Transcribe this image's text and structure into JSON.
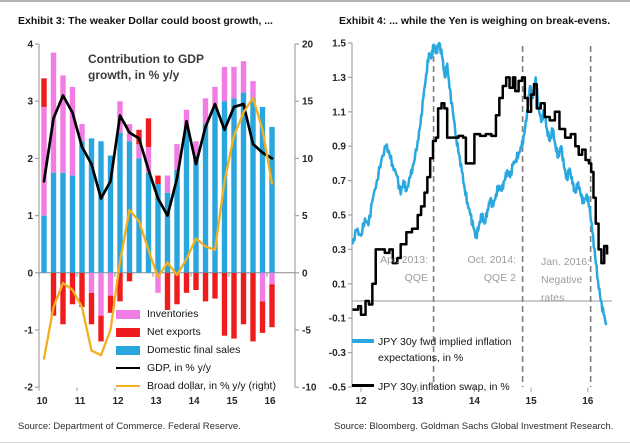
{
  "page": {
    "top_border_color": "#b3b3b3",
    "background": "#ffffff"
  },
  "chart_data": [
    {
      "type": "bar",
      "title": "Exhibit 3: The weaker Dollar could boost growth, ...",
      "note": {
        "line1": "Contribution to GDP",
        "line2": "growth, in % y/y"
      },
      "source": "Source: Department of Commerce. Federal Reserve.",
      "xlabel": "",
      "ylabel": "",
      "x_axis": {
        "year_ticks": [
          10,
          11,
          12,
          13,
          14,
          15,
          16
        ],
        "quarter_start": 10,
        "quarter_step": 0.25
      },
      "left_axis": {
        "min": -2,
        "max": 4,
        "ticks": [
          4,
          3,
          2,
          1,
          0,
          -1,
          -2
        ]
      },
      "right_axis": {
        "min": -10,
        "max": 20,
        "ticks": [
          20,
          15,
          10,
          5,
          0,
          -5,
          -10
        ]
      },
      "axis_color": "#a3a3a3",
      "zero_line_color": "#8c8c8c",
      "series": [
        {
          "name": "Inventories",
          "kind": "bar",
          "color": "#F07CE4",
          "values": [
            1.9,
            2.1,
            1.7,
            1.55,
            0.3,
            -0.35,
            -0.75,
            -0.4,
            0.55,
            0.3,
            0.25,
            0.45,
            -0.35,
            0.3,
            0.45,
            0.35,
            0.25,
            0.45,
            0.35,
            0.6,
            0.55,
            0.55,
            0.3,
            -0.5,
            -0.2
          ]
        },
        {
          "name": "Net exports",
          "kind": "bar",
          "color": "#EE1C1C",
          "values": [
            0.5,
            -0.75,
            -0.9,
            -0.55,
            -0.6,
            -0.55,
            -0.45,
            -0.3,
            -0.5,
            -0.15,
            0.25,
            0.5,
            0.15,
            -0.65,
            -0.55,
            -0.35,
            -0.3,
            -0.5,
            -0.45,
            -1.1,
            -1.15,
            -0.9,
            -1.2,
            -0.55,
            -0.75
          ]
        },
        {
          "name": "Domestic final sales",
          "kind": "bar",
          "color": "#2AA6DF",
          "values": [
            1.0,
            1.75,
            1.75,
            1.7,
            2.3,
            2.35,
            2.3,
            2.05,
            2.45,
            2.3,
            2.0,
            1.75,
            1.55,
            1.4,
            1.8,
            2.5,
            2.05,
            2.6,
            2.9,
            3.0,
            3.05,
            3.15,
            3.05,
            2.9,
            2.55
          ]
        },
        {
          "name": "GDP, in % y/y",
          "kind": "line",
          "axis": "left",
          "color": "#000000",
          "values": [
            1.6,
            2.7,
            3.1,
            2.8,
            2.2,
            1.9,
            1.3,
            1.6,
            2.75,
            2.45,
            2.35,
            1.8,
            1.3,
            1.0,
            1.65,
            2.65,
            1.9,
            2.55,
            2.95,
            2.5,
            2.9,
            2.95,
            2.25,
            2.1,
            2.0
          ]
        },
        {
          "name": "Broad dollar, in % y/y (right)",
          "kind": "line",
          "axis": "right",
          "color": "#F2B01E",
          "values": [
            -7.5,
            -3.0,
            -0.9,
            -1.5,
            -3.0,
            -6.8,
            -7.2,
            -5.0,
            1.0,
            5.5,
            4.5,
            2.0,
            -0.4,
            0.9,
            -0.2,
            1.2,
            3.0,
            2.3,
            2.0,
            8.0,
            12.0,
            14.0,
            15.3,
            12.5,
            7.8
          ]
        }
      ]
    },
    {
      "type": "line",
      "title": "Exhibit 4: ... while the Yen is weighing on break-evens.",
      "source": "Source: Bloomberg. Goldman Sachs Global Investment Research.",
      "xlabel": "",
      "ylabel": "",
      "y_axis": {
        "min": -0.5,
        "max": 1.5,
        "tick_labels": [
          "1.5",
          "1.3",
          "1.1",
          "0.9",
          "0.7",
          "0.5",
          "0.3",
          "0.1",
          "-0.1",
          "-0.3",
          "-0.5"
        ]
      },
      "x_axis": {
        "year_ticks": [
          12,
          13,
          14,
          15,
          16
        ]
      },
      "axis_color": "#a3a3a3",
      "zero_line_color": "#9a9a9a",
      "event_line_color": "#7f7f7f",
      "annotation_text_color": "#9c9c9c",
      "events": [
        {
          "t": 13.28,
          "line1": "Apr. 2013:",
          "line2": "QQE",
          "line3": ""
        },
        {
          "t": 14.85,
          "line1": "Oct. 2014:",
          "line2": "QQE 2",
          "line3": ""
        },
        {
          "t": 16.05,
          "line1": "Jan. 2016:",
          "line2": "Negative",
          "line3": "rates"
        }
      ],
      "series": [
        {
          "name_line1": "JPY 30y fwd implied inflation",
          "name_line2": "expectations, in %",
          "color": "#29A8E0",
          "noisy": true,
          "points": [
            [
              11.85,
              0.33
            ],
            [
              11.92,
              0.41
            ],
            [
              12.0,
              0.38
            ],
            [
              12.07,
              0.48
            ],
            [
              12.13,
              0.44
            ],
            [
              12.2,
              0.58
            ],
            [
              12.28,
              0.7
            ],
            [
              12.36,
              0.82
            ],
            [
              12.44,
              0.9
            ],
            [
              12.5,
              0.86
            ],
            [
              12.56,
              0.79
            ],
            [
              12.63,
              0.73
            ],
            [
              12.7,
              0.62
            ],
            [
              12.75,
              0.7
            ],
            [
              12.8,
              0.64
            ],
            [
              12.87,
              0.72
            ],
            [
              12.93,
              0.8
            ],
            [
              13.0,
              0.93
            ],
            [
              13.05,
              1.03
            ],
            [
              13.1,
              1.18
            ],
            [
              13.15,
              1.32
            ],
            [
              13.2,
              1.44
            ],
            [
              13.24,
              1.41
            ],
            [
              13.28,
              1.49
            ],
            [
              13.33,
              1.45
            ],
            [
              13.38,
              1.5
            ],
            [
              13.43,
              1.42
            ],
            [
              13.48,
              1.3
            ],
            [
              13.52,
              1.38
            ],
            [
              13.56,
              1.24
            ],
            [
              13.62,
              1.1
            ],
            [
              13.68,
              0.95
            ],
            [
              13.73,
              0.85
            ],
            [
              13.78,
              0.75
            ],
            [
              13.83,
              0.65
            ],
            [
              13.88,
              0.57
            ],
            [
              13.93,
              0.5
            ],
            [
              13.98,
              0.43
            ],
            [
              14.03,
              0.37
            ],
            [
              14.08,
              0.44
            ],
            [
              14.13,
              0.5
            ],
            [
              14.18,
              0.45
            ],
            [
              14.23,
              0.53
            ],
            [
              14.28,
              0.59
            ],
            [
              14.33,
              0.55
            ],
            [
              14.38,
              0.62
            ],
            [
              14.43,
              0.67
            ],
            [
              14.48,
              0.64
            ],
            [
              14.53,
              0.7
            ],
            [
              14.58,
              0.76
            ],
            [
              14.63,
              0.72
            ],
            [
              14.68,
              0.79
            ],
            [
              14.73,
              0.82
            ],
            [
              14.78,
              0.86
            ],
            [
              14.83,
              0.89
            ],
            [
              14.88,
              0.97
            ],
            [
              14.93,
              1.1
            ],
            [
              14.98,
              1.25
            ],
            [
              15.03,
              1.18
            ],
            [
              15.08,
              1.3
            ],
            [
              15.13,
              1.13
            ],
            [
              15.18,
              1.04
            ],
            [
              15.23,
              1.11
            ],
            [
              15.28,
              1.0
            ],
            [
              15.33,
              0.93
            ],
            [
              15.38,
              1.0
            ],
            [
              15.43,
              0.9
            ],
            [
              15.48,
              0.84
            ],
            [
              15.53,
              0.9
            ],
            [
              15.58,
              0.78
            ],
            [
              15.63,
              0.71
            ],
            [
              15.68,
              0.77
            ],
            [
              15.73,
              0.68
            ],
            [
              15.78,
              0.63
            ],
            [
              15.83,
              0.69
            ],
            [
              15.88,
              0.61
            ],
            [
              15.93,
              0.57
            ],
            [
              15.98,
              0.62
            ],
            [
              16.03,
              0.55
            ],
            [
              16.08,
              0.4
            ],
            [
              16.13,
              0.26
            ],
            [
              16.18,
              0.12
            ],
            [
              16.23,
              0.0
            ],
            [
              16.28,
              -0.08
            ],
            [
              16.33,
              -0.14
            ]
          ]
        },
        {
          "name_line1": "JPY 30y inflation swap, in %",
          "name_line2": "",
          "color": "#000000",
          "step": true,
          "points": [
            [
              11.85,
              -0.05
            ],
            [
              11.95,
              -0.03
            ],
            [
              12.0,
              -0.08
            ],
            [
              12.08,
              0.0
            ],
            [
              12.14,
              -0.02
            ],
            [
              12.2,
              0.1
            ],
            [
              12.26,
              0.3
            ],
            [
              12.36,
              0.3
            ],
            [
              12.42,
              0.28
            ],
            [
              12.5,
              0.3
            ],
            [
              12.56,
              0.22
            ],
            [
              12.64,
              0.25
            ],
            [
              12.7,
              0.33
            ],
            [
              12.8,
              0.4
            ],
            [
              12.9,
              0.42
            ],
            [
              13.0,
              0.5
            ],
            [
              13.06,
              0.55
            ],
            [
              13.12,
              0.63
            ],
            [
              13.17,
              0.72
            ],
            [
              13.22,
              0.83
            ],
            [
              13.27,
              0.93
            ],
            [
              13.32,
              0.95
            ],
            [
              13.36,
              1.12
            ],
            [
              13.42,
              1.15
            ],
            [
              13.47,
              1.12
            ],
            [
              13.52,
              0.95
            ],
            [
              13.62,
              0.95
            ],
            [
              13.72,
              0.96
            ],
            [
              13.8,
              0.95
            ],
            [
              13.85,
              0.8
            ],
            [
              13.95,
              0.8
            ],
            [
              14.0,
              0.97
            ],
            [
              14.1,
              0.96
            ],
            [
              14.2,
              0.97
            ],
            [
              14.3,
              0.96
            ],
            [
              14.38,
              1.08
            ],
            [
              14.44,
              1.18
            ],
            [
              14.5,
              1.25
            ],
            [
              14.56,
              1.3
            ],
            [
              14.62,
              1.24
            ],
            [
              14.68,
              1.3
            ],
            [
              14.72,
              1.22
            ],
            [
              14.78,
              1.28
            ],
            [
              14.84,
              1.3
            ],
            [
              14.89,
              1.18
            ],
            [
              14.94,
              1.1
            ],
            [
              15.0,
              1.2
            ],
            [
              15.05,
              1.26
            ],
            [
              15.1,
              1.12
            ],
            [
              15.17,
              1.15
            ],
            [
              15.24,
              1.07
            ],
            [
              15.33,
              1.05
            ],
            [
              15.42,
              1.1
            ],
            [
              15.5,
              1.0
            ],
            [
              15.6,
              0.95
            ],
            [
              15.7,
              0.97
            ],
            [
              15.78,
              0.9
            ],
            [
              15.84,
              0.85
            ],
            [
              15.9,
              0.88
            ],
            [
              15.96,
              0.82
            ],
            [
              16.02,
              0.8
            ],
            [
              16.06,
              0.75
            ],
            [
              16.1,
              0.6
            ],
            [
              16.14,
              0.45
            ],
            [
              16.19,
              0.3
            ],
            [
              16.24,
              0.22
            ],
            [
              16.29,
              0.32
            ],
            [
              16.34,
              0.27
            ]
          ]
        }
      ]
    }
  ]
}
